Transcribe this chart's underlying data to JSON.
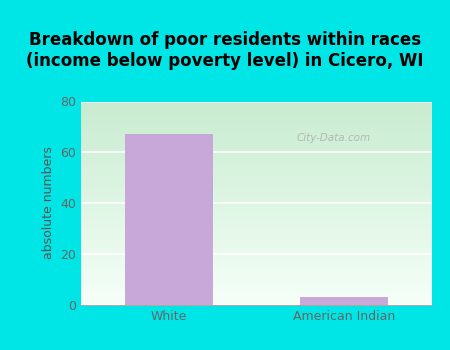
{
  "title": "Breakdown of poor residents within races\n(income below poverty level) in Cicero, WI",
  "categories": [
    "White",
    "American Indian"
  ],
  "values": [
    67,
    3
  ],
  "bar_color": "#c8a8d8",
  "ylabel": "absolute numbers",
  "ylim": [
    0,
    80
  ],
  "yticks": [
    0,
    20,
    40,
    60,
    80
  ],
  "outer_bg": "#00e5e5",
  "title_fontsize": 12,
  "axis_label_fontsize": 9,
  "tick_fontsize": 9,
  "watermark": "City-Data.com"
}
